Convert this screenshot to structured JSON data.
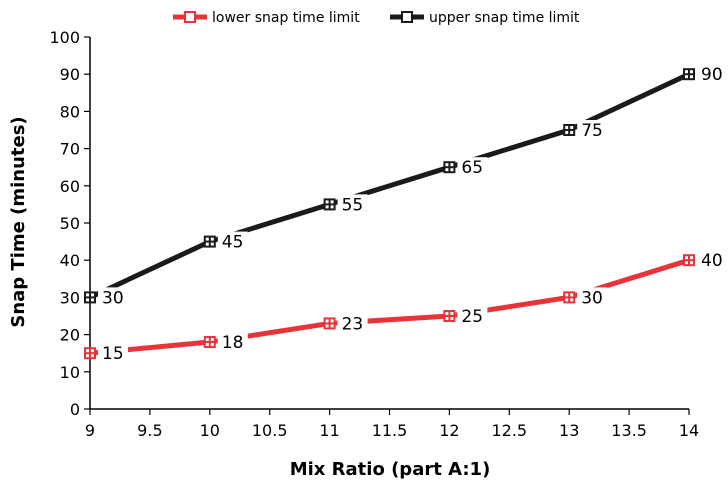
{
  "chart_data": {
    "type": "line",
    "xlabel": "Mix Ratio (part A:1)",
    "ylabel": "Snap Time (minutes)",
    "xlim": [
      9,
      14
    ],
    "ylim": [
      0,
      100
    ],
    "x_ticks": [
      "9",
      "9.5",
      "10",
      "10.5",
      "11",
      "11.5",
      "12",
      "12.5",
      "13",
      "13.5",
      "14"
    ],
    "y_ticks": [
      "0",
      "10",
      "20",
      "30",
      "40",
      "50",
      "60",
      "70",
      "80",
      "90",
      "100"
    ],
    "x": [
      9,
      10,
      11,
      12,
      13,
      14
    ],
    "series": [
      {
        "name": "lower snap time limit",
        "color": "#e8333b",
        "values": [
          15,
          18,
          23,
          25,
          30,
          40
        ]
      },
      {
        "name": "upper snap time limit",
        "color": "#1a1a1a",
        "values": [
          30,
          45,
          55,
          65,
          75,
          90
        ]
      }
    ],
    "data_labels": true,
    "legend": "top-center",
    "grid": false
  }
}
